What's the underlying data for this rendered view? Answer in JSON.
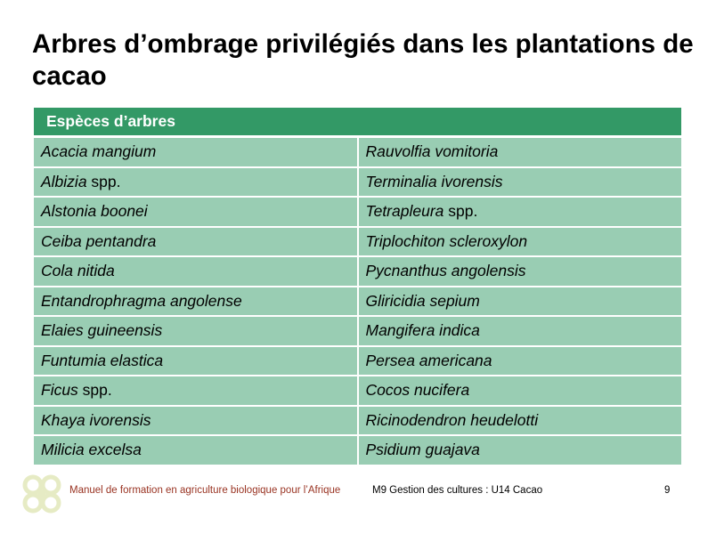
{
  "title": "Arbres d’ombrage privilégiés dans les plantations de cacao",
  "table": {
    "header": "Espèces d’arbres",
    "rows": [
      [
        {
          "name": "Acacia mangium",
          "suffix": ""
        },
        {
          "name": "Rauvolfia vomitoria",
          "suffix": ""
        }
      ],
      [
        {
          "name": "Albizia",
          "suffix": " spp."
        },
        {
          "name": "Terminalia ivorensis",
          "suffix": ""
        }
      ],
      [
        {
          "name": "Alstonia boonei",
          "suffix": ""
        },
        {
          "name": "Tetrapleura",
          "suffix": " spp."
        }
      ],
      [
        {
          "name": "Ceiba pentandra",
          "suffix": ""
        },
        {
          "name": "Triplochiton scleroxylon",
          "suffix": ""
        }
      ],
      [
        {
          "name": "Cola nitida",
          "suffix": ""
        },
        {
          "name": "Pycnanthus angolensis",
          "suffix": ""
        }
      ],
      [
        {
          "name": "Entandrophragma angolense",
          "suffix": ""
        },
        {
          "name": "Gliricidia sepium",
          "suffix": ""
        }
      ],
      [
        {
          "name": "Elaies guineensis",
          "suffix": ""
        },
        {
          "name": "Mangifera indica",
          "suffix": ""
        }
      ],
      [
        {
          "name": "Funtumia elastica",
          "suffix": ""
        },
        {
          "name": "Persea americana",
          "suffix": ""
        }
      ],
      [
        {
          "name": "Ficus",
          "suffix": " spp."
        },
        {
          "name": "Cocos nucifera",
          "suffix": ""
        }
      ],
      [
        {
          "name": "Khaya ivorensis",
          "suffix": ""
        },
        {
          "name": "Ricinodendron heudelotti",
          "suffix": ""
        }
      ],
      [
        {
          "name": "Milicia excelsa",
          "suffix": ""
        },
        {
          "name": "Psidium guajava",
          "suffix": ""
        }
      ]
    ]
  },
  "footer": {
    "manual": "Manuel de formation en agriculture biologique pour l’Afrique",
    "module": "M9 Gestion des cultures : U14 Cacao",
    "page": "9"
  },
  "colors": {
    "header": "#339966",
    "cell": "#99cdb3",
    "footer_text": "#993322"
  }
}
